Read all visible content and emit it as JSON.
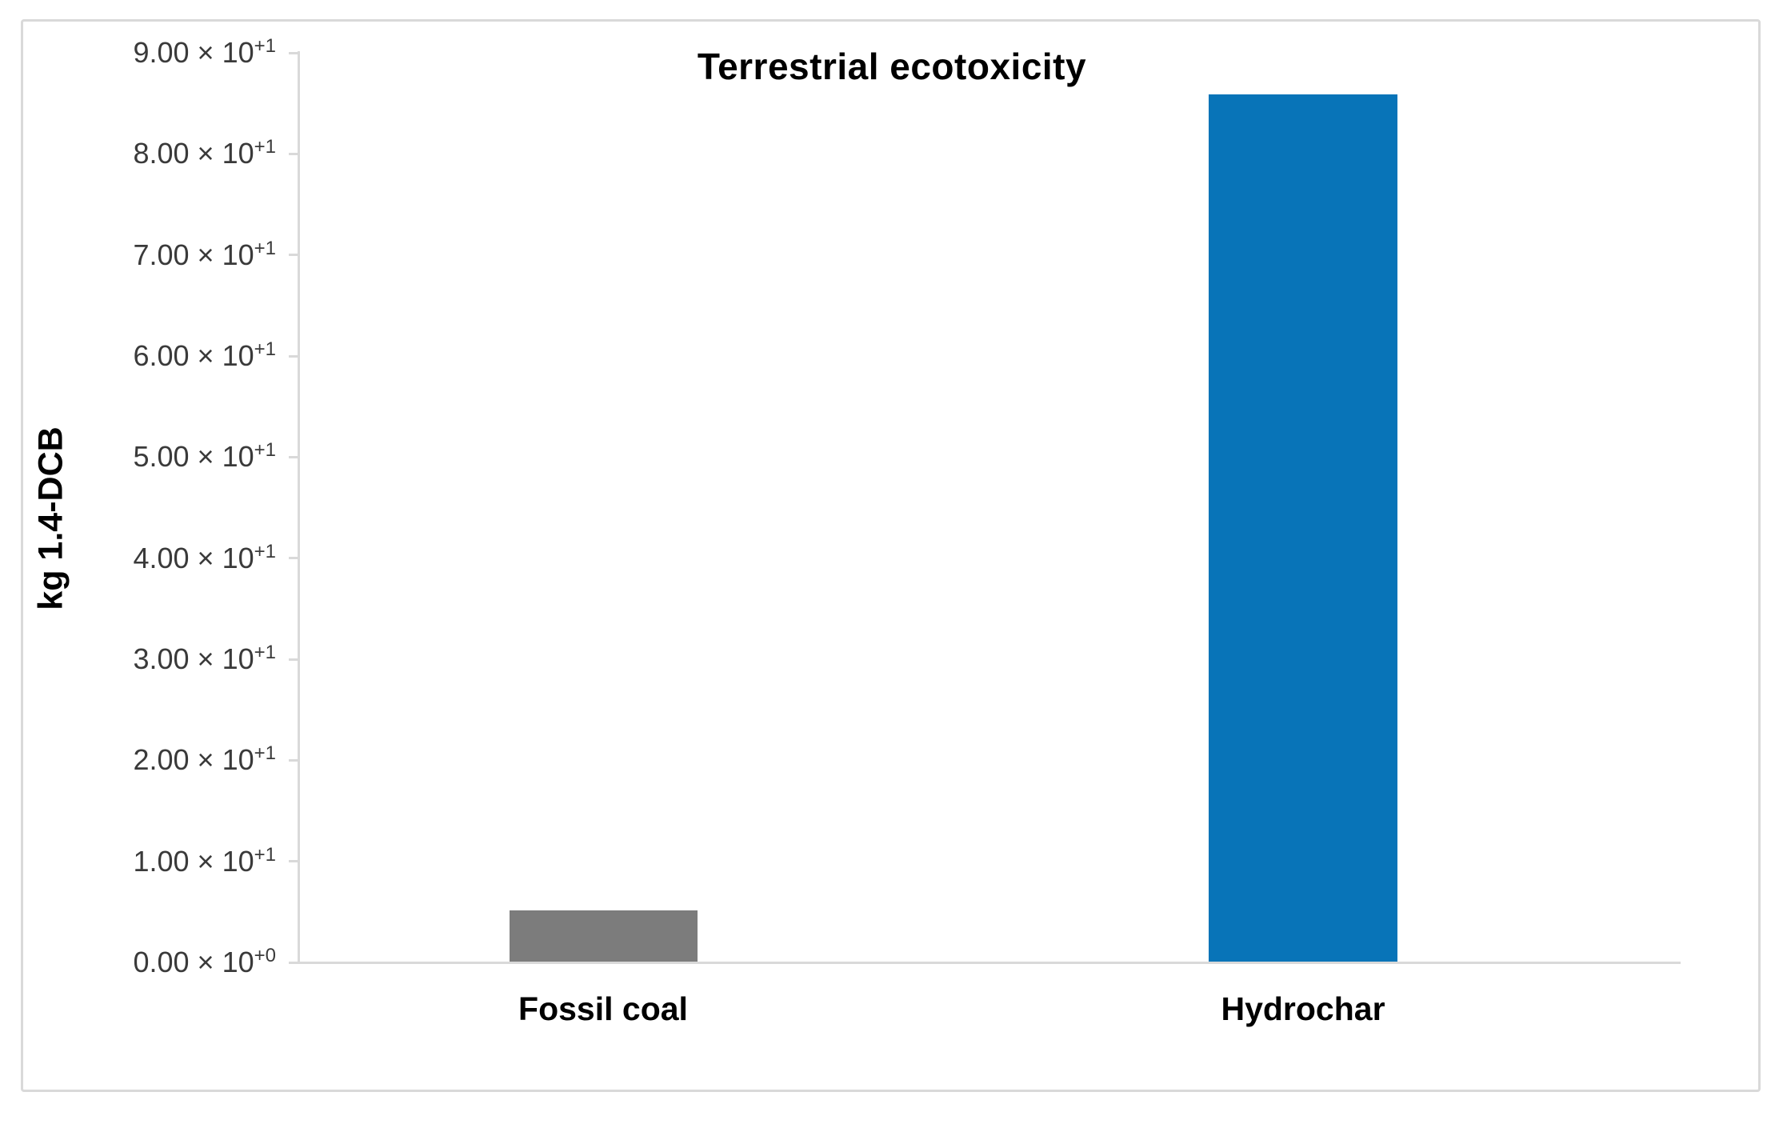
{
  "chart_data": {
    "type": "bar",
    "title": "Terrestrial ecotoxicity",
    "xlabel": "",
    "ylabel": "kg 1.4-DCB",
    "categories": [
      "Fossil coal",
      "Hydrochar"
    ],
    "values": [
      5.1,
      85.8
    ],
    "ylim": [
      0,
      90
    ],
    "ytick_step": 10,
    "yticks": [
      {
        "text": "0.00 × 10",
        "sup": "+0"
      },
      {
        "text": "1.00 × 10",
        "sup": "+1"
      },
      {
        "text": "2.00 × 10",
        "sup": "+1"
      },
      {
        "text": "3.00 × 10",
        "sup": "+1"
      },
      {
        "text": "4.00 × 10",
        "sup": "+1"
      },
      {
        "text": "5.00 × 10",
        "sup": "+1"
      },
      {
        "text": "6.00 × 10",
        "sup": "+1"
      },
      {
        "text": "7.00 × 10",
        "sup": "+1"
      },
      {
        "text": "8.00 × 10",
        "sup": "+1"
      },
      {
        "text": "9.00 × 10",
        "sup": "+1"
      }
    ],
    "bar_colors": [
      "#7c7c7c",
      "#0874b8"
    ],
    "grid": false,
    "legend": null
  },
  "colors": {
    "axis_line": "#d9d9d9",
    "frame_border": "#d9d9d9",
    "tick_text": "#3a3a3a",
    "title_text": "#000000",
    "background": "#ffffff"
  }
}
